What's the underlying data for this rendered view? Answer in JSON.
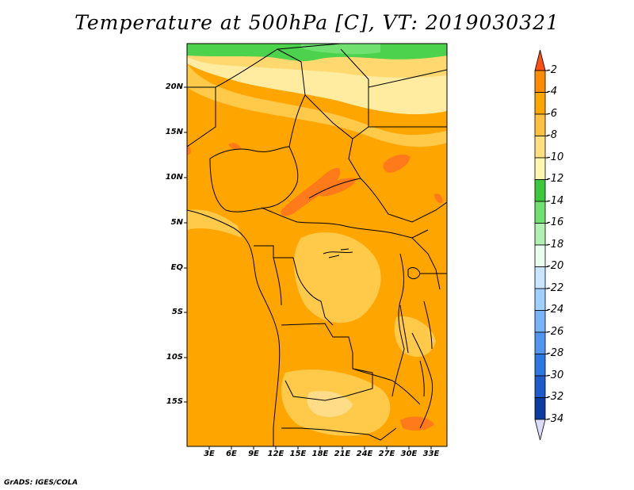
{
  "title": "Temperature at 500hPa [C], VT: 2019030321",
  "footer": "GrADS: IGES/COLA",
  "map": {
    "lat_labels": [
      "20N",
      "15N",
      "10N",
      "5N",
      "EQ",
      "5S",
      "10S",
      "15S"
    ],
    "lon_labels": [
      "3E",
      "6E",
      "9E",
      "12E",
      "15E",
      "18E",
      "21E",
      "24E",
      "27E",
      "30E",
      "33E"
    ]
  },
  "colorbar": {
    "labels": [
      "-2",
      "-4",
      "-6",
      "-8",
      "-10",
      "-12",
      "-14",
      "-16",
      "-18",
      "-20",
      "-22",
      "-24",
      "-26",
      "-28",
      "-30",
      "-32",
      "-34"
    ],
    "colors": [
      "#ff6a00",
      "#ff8c00",
      "#ffa500",
      "#ffc040",
      "#ffe080",
      "#fff6b0",
      "#3cc83c",
      "#70e070",
      "#b0f0b0",
      "#e8fff0",
      "#c8e6ff",
      "#a0d0ff",
      "#78b4f8",
      "#5096f0",
      "#2c78e0",
      "#1e5ac8",
      "#0c3ca0",
      "#00106e"
    ],
    "over_color": "#ff5014",
    "under_color": "#dcdcfa"
  },
  "colors": {
    "dominant": "#ffa500",
    "warm_patch": "#ff7a1a",
    "cool_band": "#ffc94a",
    "pale_band": "#ffeca0",
    "green_band": "#4cd24c",
    "border": "#000000"
  }
}
